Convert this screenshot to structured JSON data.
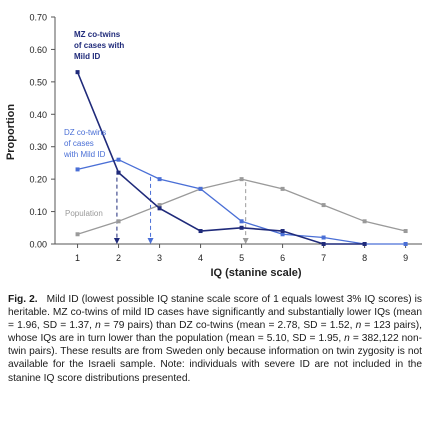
{
  "chart_data": {
    "type": "line",
    "xlabel": "IQ (stanine scale)",
    "ylabel": "Proportion",
    "x": [
      1,
      2,
      3,
      4,
      5,
      6,
      7,
      8,
      9
    ],
    "xlim": [
      0.45,
      9.4
    ],
    "ylim": [
      0,
      0.7
    ],
    "yticks": [
      "0.00",
      "0.10",
      "0.20",
      "0.30",
      "0.40",
      "0.50",
      "0.60",
      "0.70"
    ],
    "xticks": [
      "1",
      "2",
      "3",
      "4",
      "5",
      "6",
      "7",
      "8",
      "9"
    ],
    "grid": false,
    "legend": "inline labels",
    "series": [
      {
        "key": "mz",
        "name": "MZ co-twins of cases with Mild ID",
        "label_lines": [
          "MZ co-twins",
          "of cases with",
          "Mild ID"
        ],
        "color": "#1f2a7a",
        "values": [
          0.53,
          0.22,
          0.11,
          0.04,
          0.05,
          0.04,
          0.0,
          0.0,
          null
        ],
        "mean": 1.96
      },
      {
        "key": "dz",
        "name": "DZ co-twins of cases with Mild ID",
        "label_lines": [
          "DZ co-twins",
          "of cases",
          "with Mild ID"
        ],
        "color": "#4a6fd6",
        "values": [
          0.23,
          0.26,
          0.2,
          0.17,
          0.07,
          0.03,
          0.02,
          0.0,
          0.0
        ],
        "mean": 2.78
      },
      {
        "key": "pop",
        "name": "Population",
        "label_lines": [
          "Population"
        ],
        "color": "#9a9a9a",
        "values": [
          0.03,
          0.07,
          0.12,
          0.17,
          0.2,
          0.17,
          0.12,
          0.07,
          0.04
        ],
        "mean": 5.1
      }
    ]
  },
  "caption": {
    "label": "Fig. 2.",
    "segments": [
      {
        "t": "Mild ID (lowest possible IQ stanine scale score of 1 equals lowest 3% IQ scores) is heritable. MZ co-twins of mild ID cases have significantly and substantially lower IQs (mean = 1.96, SD = 1.37, ",
        "i": false
      },
      {
        "t": "n",
        "i": true
      },
      {
        "t": " = 79 pairs) than DZ co-twins (mean = 2.78, SD = 1.52, ",
        "i": false
      },
      {
        "t": "n",
        "i": true
      },
      {
        "t": " = 123 pairs), whose IQs are in turn lower than the population (mean = 5.10, SD = 1.95, ",
        "i": false
      },
      {
        "t": "n",
        "i": true
      },
      {
        "t": " = 382,122 non-twin pairs). These results are from Sweden only because information on twin zygosity is not available for the Israeli sample. Note: individuals with severe ID are not included in the stanine IQ score distributions presented.",
        "i": false
      }
    ]
  }
}
